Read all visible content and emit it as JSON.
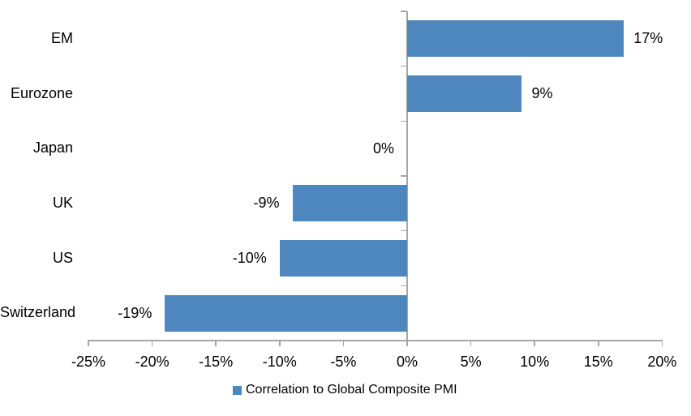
{
  "chart_data": {
    "type": "bar",
    "orientation": "horizontal",
    "title": "",
    "categories": [
      "EM",
      "Eurozone",
      "Japan",
      "UK",
      "US",
      "Switzerland"
    ],
    "values": [
      17,
      9,
      0,
      -9,
      -10,
      -19
    ],
    "data_labels": [
      "17%",
      "9%",
      "0%",
      "-9%",
      "-10%",
      "-19%"
    ],
    "x_tick_labels": [
      "-25%",
      "-20%",
      "-15%",
      "-10%",
      "-5%",
      "0%",
      "5%",
      "10%",
      "15%",
      "20%"
    ],
    "x_tick_values": [
      -25,
      -20,
      -15,
      -10,
      -5,
      0,
      5,
      10,
      15,
      20
    ],
    "xlim": [
      -25,
      20
    ],
    "xlabel": "",
    "ylabel": "",
    "grid": false,
    "legend": "Correlation to Global Composite PMI",
    "legend_position": "bottom-center",
    "bar_color": "#4E87BD",
    "axis_color": "#A6A6A6",
    "text_color": "#000000",
    "background_color": "#FFFFFF"
  }
}
